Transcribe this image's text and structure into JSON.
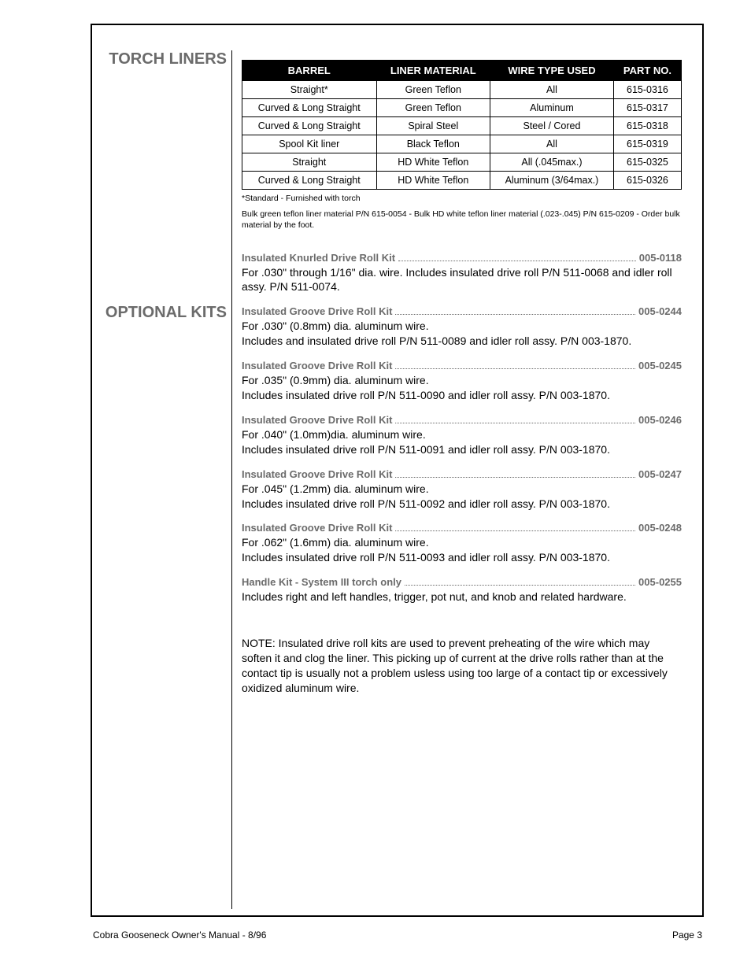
{
  "headings": {
    "torch": "TORCH LINERS",
    "kits": "OPTIONAL KITS"
  },
  "table": {
    "headers": [
      "BARREL",
      "LINER MATERIAL",
      "WIRE TYPE USED",
      "PART NO."
    ],
    "rows": [
      [
        "Straight*",
        "Green Teflon",
        "All",
        "615-0316"
      ],
      [
        "Curved & Long Straight",
        "Green Teflon",
        "Aluminum",
        "615-0317"
      ],
      [
        "Curved & Long Straight",
        "Spiral Steel",
        "Steel / Cored",
        "615-0318"
      ],
      [
        "Spool Kit liner",
        "Black Teflon",
        "All",
        "615-0319"
      ],
      [
        "Straight",
        "HD White Teflon",
        "All (.045max.)",
        "615-0325"
      ],
      [
        "Curved & Long Straight",
        "HD White Teflon",
        "Aluminum (3/64max.)",
        "615-0326"
      ]
    ],
    "notes": [
      "*Standard - Furnished with torch",
      "Bulk green teflon liner material P/N 615-0054 - Bulk HD white teflon liner material (.023-.045) P/N 615-0209 - Order bulk material by the foot."
    ]
  },
  "kits": [
    {
      "title": "Insulated Knurled Drive Roll Kit",
      "part": "005-0118",
      "desc": "For .030\" through 1/16\" dia. wire.  Includes insulated drive roll P/N 511-0068 and idler roll assy. P/N 511-0074."
    },
    {
      "title": "Insulated Groove Drive Roll Kit",
      "part": "005-0244",
      "desc": "For .030\" (0.8mm) dia. aluminum wire.\nIncludes and insulated drive roll P/N 511-0089 and idler roll assy. P/N 003-1870."
    },
    {
      "title": "Insulated Groove Drive Roll Kit",
      "part": "005-0245",
      "desc": "For .035\" (0.9mm) dia. aluminum wire.\nIncludes insulated drive roll P/N 511-0090 and idler roll assy. P/N 003-1870."
    },
    {
      "title": "Insulated Groove Drive Roll Kit",
      "part": "005-0246",
      "desc": "For .040\" (1.0mm)dia. aluminum wire.\nIncludes insulated drive roll P/N 511-0091 and idler roll assy. P/N 003-1870."
    },
    {
      "title": "Insulated Groove Drive Roll Kit",
      "part": "005-0247",
      "desc": "For .045\" (1.2mm) dia. aluminum wire.\nIncludes insulated drive roll P/N 511-0092 and idler roll assy. P/N 003-1870."
    },
    {
      "title": "Insulated Groove Drive Roll Kit",
      "part": "005-0248",
      "desc": "For .062\" (1.6mm) dia. aluminum wire.\nIncludes insulated drive roll P/N 511-0093 and idler roll assy. P/N 003-1870."
    },
    {
      "title": "Handle Kit - System III  torch only",
      "part": "005-0255",
      "desc": "Includes right and left handles, trigger, pot nut, and knob and related hardware."
    }
  ],
  "note": "NOTE: Insulated drive roll kits are used to prevent preheating of the wire which may soften it and clog the liner.  This picking up of current at the drive rolls rather than at the contact tip is usually not a problem usless using too large of a contact tip or excessively oxidized aluminum wire.",
  "footer": {
    "left": "Cobra Gooseneck  Owner's Manual - 8/96",
    "right": "Page 3"
  }
}
